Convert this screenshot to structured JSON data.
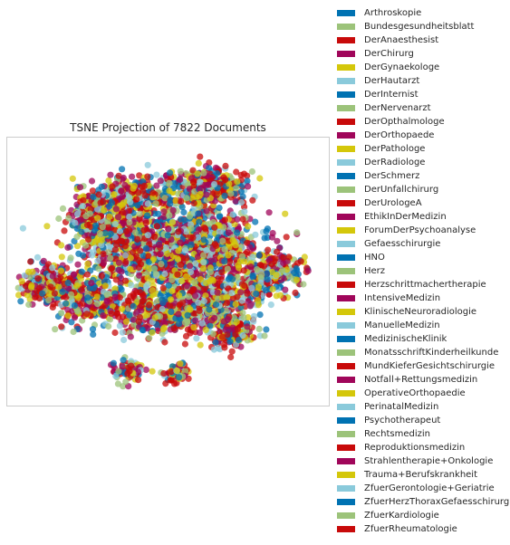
{
  "chart_data": {
    "type": "scatter",
    "title": "TSNE Projection of 7822 Documents",
    "xlabel": "",
    "ylabel": "",
    "grid": false,
    "axis_ticks": false,
    "legend_placement": "outside-right",
    "n_points": 7822,
    "palette": [
      "#0072B2",
      "#9CC37A",
      "#C80A0A",
      "#A0065A",
      "#D4C70A",
      "#8ACADB"
    ],
    "series": [
      {
        "name": "Arthroskopie",
        "color": "#0072B2"
      },
      {
        "name": "Bundesgesundheitsblatt",
        "color": "#9CC37A"
      },
      {
        "name": "DerAnaesthesist",
        "color": "#C80A0A"
      },
      {
        "name": "DerChirurg",
        "color": "#A0065A"
      },
      {
        "name": "DerGynaekologe",
        "color": "#D4C70A"
      },
      {
        "name": "DerHautarzt",
        "color": "#8ACADB"
      },
      {
        "name": "DerInternist",
        "color": "#0072B2"
      },
      {
        "name": "DerNervenarzt",
        "color": "#9CC37A"
      },
      {
        "name": "DerOpthalmologe",
        "color": "#C80A0A"
      },
      {
        "name": "DerOrthopaede",
        "color": "#A0065A"
      },
      {
        "name": "DerPathologe",
        "color": "#D4C70A"
      },
      {
        "name": "DerRadiologe",
        "color": "#8ACADB"
      },
      {
        "name": "DerSchmerz",
        "color": "#0072B2"
      },
      {
        "name": "DerUnfallchirurg",
        "color": "#9CC37A"
      },
      {
        "name": "DerUrologeA",
        "color": "#C80A0A"
      },
      {
        "name": "EthikInDerMedizin",
        "color": "#A0065A"
      },
      {
        "name": "ForumDerPsychoanalyse",
        "color": "#D4C70A"
      },
      {
        "name": "Gefaesschirurgie",
        "color": "#8ACADB"
      },
      {
        "name": "HNO",
        "color": "#0072B2"
      },
      {
        "name": "Herz",
        "color": "#9CC37A"
      },
      {
        "name": "Herzschrittmachertherapie",
        "color": "#C80A0A"
      },
      {
        "name": "IntensiveMedizin",
        "color": "#A0065A"
      },
      {
        "name": "KlinischeNeuroradiologie",
        "color": "#D4C70A"
      },
      {
        "name": "ManuelleMedizin",
        "color": "#8ACADB"
      },
      {
        "name": "MedizinischeKlinik",
        "color": "#0072B2"
      },
      {
        "name": "MonatsschriftKinderheilkunde",
        "color": "#9CC37A"
      },
      {
        "name": "MundKieferGesichtschirurgie",
        "color": "#C80A0A"
      },
      {
        "name": "Notfall+Rettungsmedizin",
        "color": "#A0065A"
      },
      {
        "name": "OperativeOrthopaedie",
        "color": "#D4C70A"
      },
      {
        "name": "PerinatalMedizin",
        "color": "#8ACADB"
      },
      {
        "name": "Psychotherapeut",
        "color": "#0072B2"
      },
      {
        "name": "Rechtsmedizin",
        "color": "#9CC37A"
      },
      {
        "name": "Reproduktionsmedizin",
        "color": "#C80A0A"
      },
      {
        "name": "Strahlentherapie+Onkologie",
        "color": "#A0065A"
      },
      {
        "name": "Trauma+Berufskrankheit",
        "color": "#D4C70A"
      },
      {
        "name": "ZfuerGerontologie+Geriatrie",
        "color": "#8ACADB"
      },
      {
        "name": "ZfuerHerzThoraxGefaesschirurgie",
        "color": "#0072B2"
      },
      {
        "name": "ZfuerKardiologie",
        "color": "#9CC37A"
      },
      {
        "name": "ZfuerRheumatologie",
        "color": "#C80A0A"
      }
    ]
  }
}
